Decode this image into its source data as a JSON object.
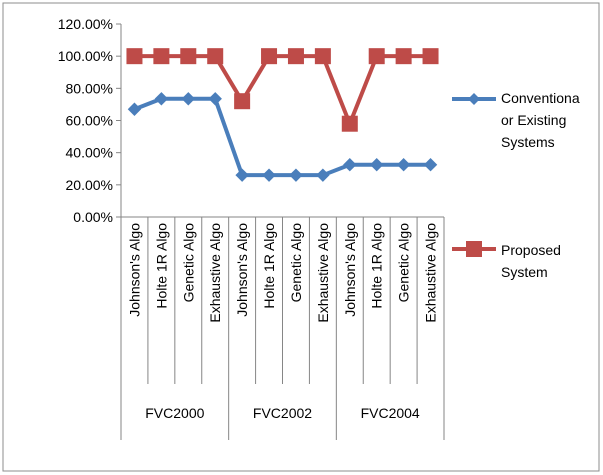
{
  "chart_data": {
    "type": "line",
    "title": "",
    "xlabel": "",
    "ylabel": "",
    "ylim": [
      0,
      1.2
    ],
    "y_ticks": [
      0,
      0.2,
      0.4,
      0.6,
      0.8,
      1.0,
      1.2
    ],
    "y_tick_labels": [
      "0.00%",
      "20.00%",
      "40.00%",
      "60.00%",
      "80.00%",
      "100.00%",
      "120.00%"
    ],
    "gridlines": false,
    "legend_position": "right",
    "categories": [
      "Johnson's Algo",
      "Holte 1R Algo",
      "Genetic Algo",
      "Exhaustive Algo",
      "Johnson's Algo",
      "Holte 1R Algo",
      "Genetic Algo",
      "Exhaustive Algo",
      "Johnson's Algo",
      "Holte 1R Algo",
      "Genetic Algo",
      "Exhaustive Algo"
    ],
    "groups": [
      "FVC2000",
      "FVC2002",
      "FVC2004"
    ],
    "series": [
      {
        "name": "Conventiona or Existing Systems",
        "legend_lines": [
          "Conventiona",
          "or Existing",
          "Systems"
        ],
        "color": "#4a7ebb",
        "marker": "diamond",
        "values": [
          0.67,
          0.735,
          0.735,
          0.735,
          0.26,
          0.26,
          0.26,
          0.26,
          0.325,
          0.325,
          0.325,
          0.325
        ]
      },
      {
        "name": "Proposed System",
        "legend_lines": [
          "Proposed",
          "System"
        ],
        "color": "#be4b48",
        "marker": "square",
        "values": [
          1.0,
          1.0,
          1.0,
          1.0,
          0.72,
          1.0,
          1.0,
          1.0,
          0.58,
          1.0,
          1.0,
          1.0
        ]
      }
    ]
  }
}
